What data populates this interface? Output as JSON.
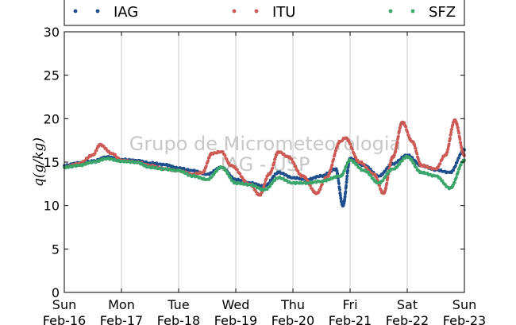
{
  "chart_data": {
    "type": "scatter",
    "ylabel": "q(g/kg)",
    "ylim": [
      0,
      30
    ],
    "yticks": [
      0,
      5,
      10,
      15,
      20,
      25,
      30
    ],
    "xlim": [
      "2015-02-16",
      "2015-02-23"
    ],
    "xticks": [
      {
        "day": "Sun",
        "date": "Feb-16"
      },
      {
        "day": "Mon",
        "date": "Feb-17"
      },
      {
        "day": "Tue",
        "date": "Feb-18"
      },
      {
        "day": "Wed",
        "date": "Feb-19"
      },
      {
        "day": "Thu",
        "date": "Feb-20"
      },
      {
        "day": "Fri",
        "date": "Feb-21"
      },
      {
        "day": "Sat",
        "date": "Feb-22"
      },
      {
        "day": "Sun",
        "date": "Feb-23"
      }
    ],
    "grid": "vertical",
    "legend_position": "top",
    "watermark": [
      "Grupo de Micrometeorologia",
      "IAG - USP"
    ],
    "series": [
      {
        "name": "IAG",
        "color": "#1f4e8c",
        "points": [
          [
            "2015-02-16 00:00",
            14.6
          ],
          [
            "2015-02-16 06:00",
            14.9
          ],
          [
            "2015-02-16 12:00",
            15.1
          ],
          [
            "2015-02-16 18:00",
            15.6
          ],
          [
            "2015-02-17 00:00",
            15.3
          ],
          [
            "2015-02-17 06:00",
            15.2
          ],
          [
            "2015-02-17 12:00",
            14.9
          ],
          [
            "2015-02-17 18:00",
            14.7
          ],
          [
            "2015-02-18 00:00",
            14.3
          ],
          [
            "2015-02-18 06:00",
            14.0
          ],
          [
            "2015-02-18 12:00",
            13.6
          ],
          [
            "2015-02-18 18:00",
            14.4
          ],
          [
            "2015-02-19 00:00",
            13.0
          ],
          [
            "2015-02-19 06:00",
            12.6
          ],
          [
            "2015-02-19 12:00",
            12.2
          ],
          [
            "2015-02-19 18:00",
            13.8
          ],
          [
            "2015-02-20 00:00",
            13.2
          ],
          [
            "2015-02-20 06:00",
            13.0
          ],
          [
            "2015-02-20 12:00",
            13.4
          ],
          [
            "2015-02-20 18:00",
            14.2
          ],
          [
            "2015-02-20 21:00",
            10.0
          ],
          [
            "2015-02-21 00:00",
            15.4
          ],
          [
            "2015-02-21 06:00",
            14.6
          ],
          [
            "2015-02-21 12:00",
            13.4
          ],
          [
            "2015-02-21 18:00",
            14.8
          ],
          [
            "2015-02-22 00:00",
            15.8
          ],
          [
            "2015-02-22 06:00",
            14.6
          ],
          [
            "2015-02-22 12:00",
            14.1
          ],
          [
            "2015-02-22 18:00",
            13.8
          ],
          [
            "2015-02-23 00:00",
            16.4
          ]
        ]
      },
      {
        "name": "ITU",
        "color": "#cc5a55",
        "points": [
          [
            "2015-02-16 00:00",
            14.4
          ],
          [
            "2015-02-16 06:00",
            14.8
          ],
          [
            "2015-02-16 12:00",
            15.8
          ],
          [
            "2015-02-16 15:00",
            17.0
          ],
          [
            "2015-02-16 20:00",
            16.0
          ],
          [
            "2015-02-17 00:00",
            15.2
          ],
          [
            "2015-02-17 06:00",
            15.0
          ],
          [
            "2015-02-17 12:00",
            14.6
          ],
          [
            "2015-02-17 18:00",
            14.2
          ],
          [
            "2015-02-18 00:00",
            14.0
          ],
          [
            "2015-02-18 06:00",
            13.6
          ],
          [
            "2015-02-18 10:00",
            13.8
          ],
          [
            "2015-02-18 14:00",
            16.0
          ],
          [
            "2015-02-18 18:00",
            16.2
          ],
          [
            "2015-02-18 22:00",
            14.6
          ],
          [
            "2015-02-19 06:00",
            12.4
          ],
          [
            "2015-02-19 10:00",
            11.2
          ],
          [
            "2015-02-19 14:00",
            13.6
          ],
          [
            "2015-02-19 18:00",
            16.2
          ],
          [
            "2015-02-19 22:00",
            15.6
          ],
          [
            "2015-02-20 04:00",
            13.4
          ],
          [
            "2015-02-20 10:00",
            11.4
          ],
          [
            "2015-02-20 14:00",
            13.2
          ],
          [
            "2015-02-20 20:00",
            17.4
          ],
          [
            "2015-02-20 22:00",
            17.8
          ],
          [
            "2015-02-21 04:00",
            15.0
          ],
          [
            "2015-02-21 10:00",
            13.6
          ],
          [
            "2015-02-21 14:00",
            11.4
          ],
          [
            "2015-02-21 18:00",
            15.6
          ],
          [
            "2015-02-21 22:00",
            19.6
          ],
          [
            "2015-02-22 02:00",
            17.4
          ],
          [
            "2015-02-22 06:00",
            14.6
          ],
          [
            "2015-02-22 12:00",
            14.2
          ],
          [
            "2015-02-22 16:00",
            15.8
          ],
          [
            "2015-02-22 20:00",
            19.8
          ],
          [
            "2015-02-23 00:00",
            15.8
          ]
        ]
      },
      {
        "name": "SFZ",
        "color": "#3ba56a",
        "points": [
          [
            "2015-02-16 00:00",
            14.4
          ],
          [
            "2015-02-16 06:00",
            14.6
          ],
          [
            "2015-02-16 12:00",
            15.0
          ],
          [
            "2015-02-16 18:00",
            15.4
          ],
          [
            "2015-02-17 00:00",
            15.1
          ],
          [
            "2015-02-17 06:00",
            15.0
          ],
          [
            "2015-02-17 12:00",
            14.4
          ],
          [
            "2015-02-17 18:00",
            14.2
          ],
          [
            "2015-02-18 00:00",
            14.0
          ],
          [
            "2015-02-18 06:00",
            13.4
          ],
          [
            "2015-02-18 12:00",
            13.0
          ],
          [
            "2015-02-18 18:00",
            14.4
          ],
          [
            "2015-02-19 00:00",
            12.6
          ],
          [
            "2015-02-19 06:00",
            12.4
          ],
          [
            "2015-02-19 12:00",
            11.8
          ],
          [
            "2015-02-19 18:00",
            13.2
          ],
          [
            "2015-02-20 00:00",
            12.6
          ],
          [
            "2015-02-20 06:00",
            12.6
          ],
          [
            "2015-02-20 12:00",
            12.8
          ],
          [
            "2015-02-20 20:00",
            13.4
          ],
          [
            "2015-02-21 00:00",
            15.2
          ],
          [
            "2015-02-21 06:00",
            14.0
          ],
          [
            "2015-02-21 12:00",
            12.6
          ],
          [
            "2015-02-21 18:00",
            14.2
          ],
          [
            "2015-02-22 00:00",
            15.6
          ],
          [
            "2015-02-22 06:00",
            13.8
          ],
          [
            "2015-02-22 12:00",
            13.4
          ],
          [
            "2015-02-22 18:00",
            12.0
          ],
          [
            "2015-02-23 00:00",
            15.2
          ]
        ]
      }
    ]
  }
}
